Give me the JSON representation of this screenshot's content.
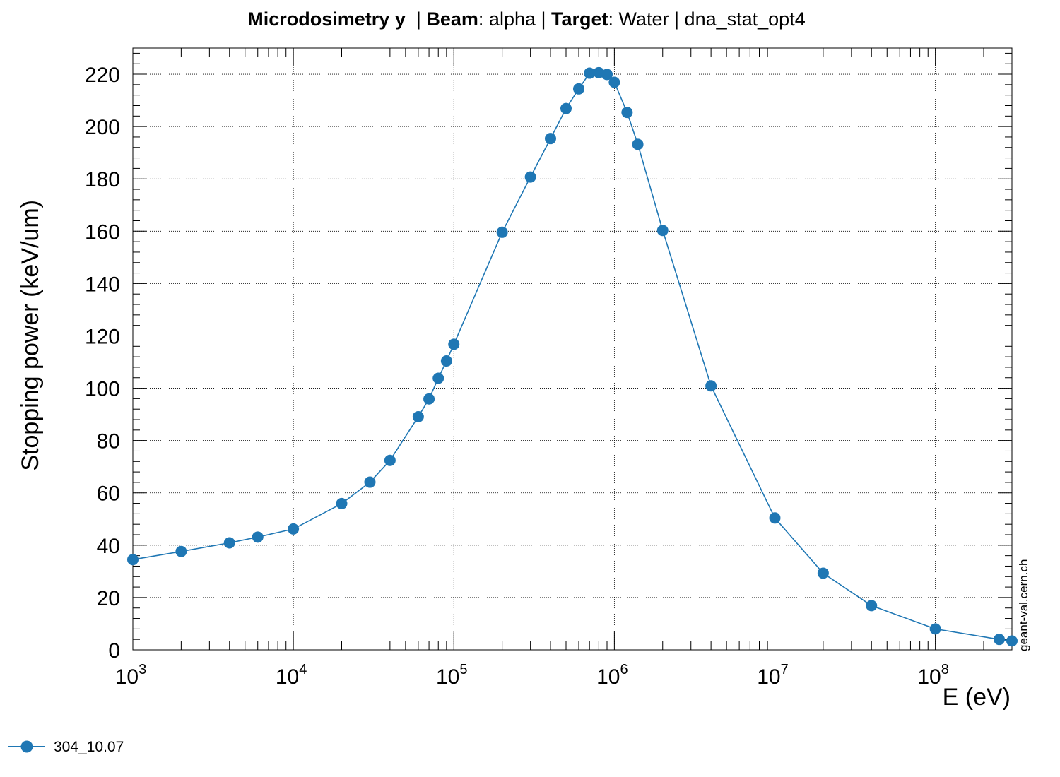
{
  "title": {
    "part1_bold": "Microdosimetry y",
    "sep1": "  | ",
    "part2_bold": "Beam",
    "part2_value": ": alpha | ",
    "part3_bold": "Target",
    "part3_value": ": Water | dna_stat_opt4"
  },
  "watermark": "geant-val.cern.ch",
  "chart_data": {
    "type": "line",
    "xlabel": "E (eV)",
    "ylabel": "Stopping power (keV/um)",
    "xscale": "log",
    "xlim": [
      1000,
      300000000
    ],
    "ylim": [
      0,
      230
    ],
    "grid": true,
    "legend_position": "bottom-left",
    "x_tick_labels": [
      {
        "base": "10",
        "exp": "3",
        "value": 1000
      },
      {
        "base": "10",
        "exp": "4",
        "value": 10000
      },
      {
        "base": "10",
        "exp": "5",
        "value": 100000
      },
      {
        "base": "10",
        "exp": "6",
        "value": 1000000
      },
      {
        "base": "10",
        "exp": "7",
        "value": 10000000
      },
      {
        "base": "10",
        "exp": "8",
        "value": 100000000
      }
    ],
    "y_ticks": [
      0,
      20,
      40,
      60,
      80,
      100,
      120,
      140,
      160,
      180,
      200,
      220
    ],
    "series": [
      {
        "name": "304_10.07",
        "color": "#1f77b4",
        "x": [
          1000,
          2000,
          4000,
          6000,
          10000,
          20000,
          30000,
          40000,
          60000,
          70000,
          80000,
          90000,
          100000,
          200000,
          300000,
          400000,
          500000,
          600000,
          700000,
          800000,
          900000,
          1000000,
          1200000,
          1400000,
          2000000,
          4000000,
          10000000,
          20000000,
          40000000,
          100000000,
          250000000,
          300000000
        ],
        "y": [
          34.5,
          37.6,
          40.9,
          43.1,
          46.2,
          55.9,
          64.1,
          72.4,
          89.1,
          95.9,
          103.8,
          110.4,
          116.8,
          159.6,
          180.7,
          195.4,
          206.9,
          214.4,
          220.4,
          220.6,
          219.9,
          216.9,
          205.4,
          193.2,
          160.3,
          100.9,
          50.4,
          29.3,
          16.9,
          8.0,
          4.0,
          3.4
        ]
      }
    ]
  }
}
